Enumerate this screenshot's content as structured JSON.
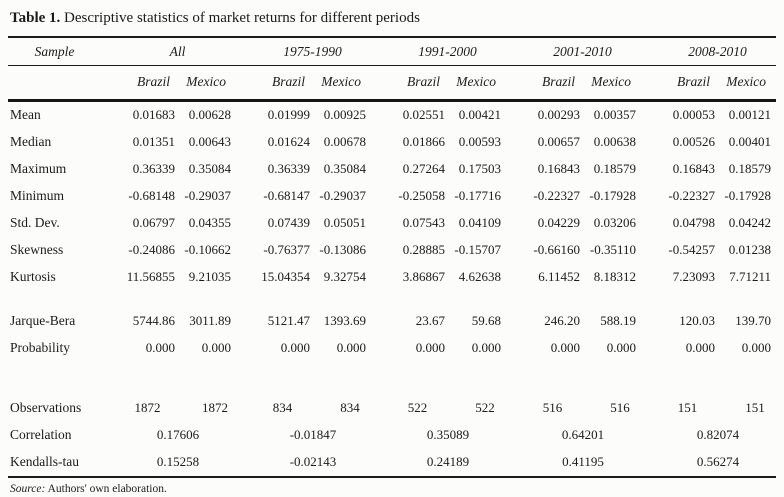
{
  "title": {
    "label": "Table 1.",
    "text": "Descriptive statistics of market returns for different periods"
  },
  "header": {
    "sample_label": "Sample",
    "periods": [
      "All",
      "1975-1990",
      "1991-2000",
      "2001-2010",
      "2008-2010"
    ],
    "countries": [
      "Brazil",
      "Mexico"
    ]
  },
  "rows": [
    {
      "label": "Mean",
      "values": [
        "0.01683",
        "0.00628",
        "0.01999",
        "0.00925",
        "0.02551",
        "0.00421",
        "0.00293",
        "0.00357",
        "0.00053",
        "0.00121"
      ]
    },
    {
      "label": "Median",
      "values": [
        "0.01351",
        "0.00643",
        "0.01624",
        "0.00678",
        "0.01866",
        "0.00593",
        "0.00657",
        "0.00638",
        "0.00526",
        "0.00401"
      ]
    },
    {
      "label": "Maximum",
      "values": [
        "0.36339",
        "0.35084",
        "0.36339",
        "0.35084",
        "0.27264",
        "0.17503",
        "0.16843",
        "0.18579",
        "0.16843",
        "0.18579"
      ]
    },
    {
      "label": "Minimum",
      "values": [
        "-0.68148",
        "-0.29037",
        "-0.68147",
        "-0.29037",
        "-0.25058",
        "-0.17716",
        "-0.22327",
        "-0.17928",
        "-0.22327",
        "-0.17928"
      ]
    },
    {
      "label": "Std. Dev.",
      "values": [
        "0.06797",
        "0.04355",
        "0.07439",
        "0.05051",
        "0.07543",
        "0.04109",
        "0.04229",
        "0.03206",
        "0.04798",
        "0.04242"
      ]
    },
    {
      "label": "Skewness",
      "values": [
        "-0.24086",
        "-0.10662",
        "-0.76377",
        "-0.13086",
        "0.28885",
        "-0.15707",
        "-0.66160",
        "-0.35110",
        "-0.54257",
        "0.01238"
      ]
    },
    {
      "label": "Kurtosis",
      "values": [
        "11.56855",
        "9.21035",
        "15.04354",
        "9.32754",
        "3.86867",
        "4.62638",
        "6.11452",
        "8.18312",
        "7.23093",
        "7.71211"
      ]
    },
    {
      "label": "Jarque-Bera",
      "values": [
        "5744.86",
        "3011.89",
        "5121.47",
        "1393.69",
        "23.67",
        "59.68",
        "246.20",
        "588.19",
        "120.03",
        "139.70"
      ]
    },
    {
      "label": "Probability",
      "values": [
        "0.000",
        "0.000",
        "0.000",
        "0.000",
        "0.000",
        "0.000",
        "0.000",
        "0.000",
        "0.000",
        "0.000"
      ]
    },
    {
      "label": "Observations",
      "values": [
        "1872",
        "1872",
        "834",
        "834",
        "522",
        "522",
        "516",
        "516",
        "151",
        "151"
      ]
    },
    {
      "label": "Correlation",
      "values": [
        "0.17606",
        "-0.01847",
        "0.35089",
        "0.64201",
        "0.82074"
      ]
    },
    {
      "label": "Kendalls-tau",
      "values": [
        "0.15258",
        "-0.02143",
        "0.24189",
        "0.41195",
        "0.56274"
      ]
    }
  ],
  "footer": {
    "source_label": "Source:",
    "source_text": "Authors' own elaboration."
  },
  "colors": {
    "text": "#1b1b1b",
    "background": "#fcfcfb"
  }
}
